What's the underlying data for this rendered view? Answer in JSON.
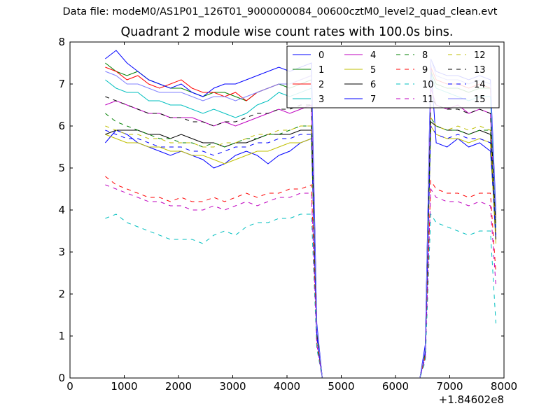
{
  "suptitle": "Data file: modeM0/AS1P01_126T01_9000000084_00600cztM0_level2_quad_clean.evt",
  "chart_data": {
    "type": "line",
    "title": "Quadrant 2 module wise count rates with 100.0s bins.",
    "xlabel": "",
    "ylabel": "",
    "x_offset_label": "+1.84602e8",
    "xlim": [
      0,
      8000
    ],
    "ylim": [
      0,
      8
    ],
    "xticks": [
      "0",
      "1000",
      "2000",
      "3000",
      "4000",
      "5000",
      "6000",
      "7000",
      "8000"
    ],
    "yticks": [
      "0",
      "1",
      "2",
      "3",
      "4",
      "5",
      "6",
      "7",
      "8"
    ],
    "grid": false,
    "legend_position": "top-right",
    "legend_columns": 4,
    "x": [
      650,
      850,
      1050,
      1250,
      1450,
      1650,
      1850,
      2050,
      2250,
      2450,
      2650,
      2850,
      3050,
      3250,
      3450,
      3650,
      3850,
      4050,
      4250,
      4450,
      4550,
      4650,
      4850,
      5050,
      5250,
      5450,
      5650,
      5850,
      6050,
      6250,
      6450,
      6550,
      6650,
      6750,
      6950,
      7150,
      7350,
      7550,
      7750,
      7850
    ],
    "series": [
      {
        "name": "0",
        "color": "#0000ff",
        "dash": "solid",
        "values": [
          5.6,
          5.9,
          5.8,
          5.6,
          5.5,
          5.4,
          5.3,
          5.4,
          5.3,
          5.2,
          5.0,
          5.1,
          5.3,
          5.4,
          5.3,
          5.1,
          5.3,
          5.4,
          5.6,
          5.7,
          1.0,
          0,
          0,
          0,
          0,
          0,
          0,
          0,
          0,
          0,
          0,
          0.6,
          7.5,
          5.6,
          5.5,
          5.7,
          5.5,
          5.6,
          5.4,
          3.5
        ]
      },
      {
        "name": "1",
        "color": "#008000",
        "dash": "solid",
        "values": [
          7.5,
          7.3,
          7.2,
          7.3,
          7.1,
          7.0,
          6.9,
          6.9,
          6.8,
          6.7,
          6.8,
          6.8,
          6.7,
          6.6,
          6.8,
          6.9,
          7.0,
          6.9,
          7.0,
          7.1,
          1.2,
          0,
          0,
          0,
          0,
          0,
          0,
          0,
          0,
          0,
          0,
          0.7,
          7.3,
          7.0,
          6.9,
          6.9,
          6.8,
          6.9,
          6.9,
          3.9
        ]
      },
      {
        "name": "2",
        "color": "#ff0000",
        "dash": "solid",
        "values": [
          7.4,
          7.3,
          7.1,
          7.2,
          7.0,
          6.9,
          7.0,
          7.1,
          6.9,
          6.8,
          6.8,
          6.7,
          6.8,
          6.6,
          6.8,
          6.9,
          7.0,
          7.0,
          7.1,
          7.2,
          1.2,
          0,
          0,
          0,
          0,
          0,
          0,
          0,
          0,
          0,
          0,
          0.7,
          7.4,
          7.1,
          7.0,
          7.0,
          6.9,
          7.0,
          6.9,
          3.8
        ]
      },
      {
        "name": "3",
        "color": "#00bfbf",
        "dash": "solid",
        "values": [
          7.1,
          6.9,
          6.8,
          6.8,
          6.6,
          6.6,
          6.5,
          6.5,
          6.4,
          6.3,
          6.4,
          6.3,
          6.2,
          6.3,
          6.5,
          6.6,
          6.8,
          6.7,
          6.8,
          6.9,
          1.1,
          0,
          0,
          0,
          0,
          0,
          0,
          0,
          0,
          0,
          0,
          0.7,
          7.2,
          6.9,
          6.8,
          6.7,
          6.6,
          6.7,
          6.7,
          3.6
        ]
      },
      {
        "name": "4",
        "color": "#bf00bf",
        "dash": "solid",
        "values": [
          6.5,
          6.6,
          6.5,
          6.4,
          6.3,
          6.3,
          6.2,
          6.2,
          6.2,
          6.1,
          6.0,
          6.1,
          6.0,
          6.1,
          6.2,
          6.3,
          6.4,
          6.3,
          6.4,
          6.5,
          1.1,
          0,
          0,
          0,
          0,
          0,
          0,
          0,
          0,
          0,
          0,
          0.7,
          6.9,
          6.5,
          6.4,
          6.5,
          6.3,
          6.4,
          6.3,
          3.4
        ]
      },
      {
        "name": "5",
        "color": "#bfbf00",
        "dash": "solid",
        "values": [
          5.8,
          5.7,
          5.6,
          5.6,
          5.5,
          5.5,
          5.4,
          5.4,
          5.3,
          5.3,
          5.2,
          5.1,
          5.2,
          5.3,
          5.4,
          5.4,
          5.5,
          5.6,
          5.6,
          5.7,
          1.0,
          0,
          0,
          0,
          0,
          0,
          0,
          0,
          0,
          0,
          0,
          0.6,
          6.0,
          5.8,
          5.7,
          5.7,
          5.6,
          5.7,
          5.6,
          3.2
        ]
      },
      {
        "name": "6",
        "color": "#000000",
        "dash": "solid",
        "values": [
          5.8,
          5.9,
          5.9,
          5.9,
          5.8,
          5.8,
          5.7,
          5.8,
          5.7,
          5.6,
          5.6,
          5.5,
          5.6,
          5.6,
          5.7,
          5.8,
          5.8,
          5.8,
          5.9,
          5.9,
          1.0,
          0,
          0,
          0,
          0,
          0,
          0,
          0,
          0,
          0,
          0,
          0.6,
          6.1,
          6.0,
          5.9,
          5.9,
          5.8,
          5.9,
          5.8,
          3.3
        ]
      },
      {
        "name": "7",
        "color": "#0000ff",
        "dash": "solid",
        "values": [
          7.6,
          7.8,
          7.5,
          7.3,
          7.1,
          7.0,
          6.9,
          7.0,
          6.8,
          6.7,
          6.9,
          7.0,
          7.0,
          7.1,
          7.2,
          7.3,
          7.4,
          7.3,
          7.4,
          7.5,
          1.3,
          0,
          0,
          0,
          0,
          0,
          0,
          0,
          0,
          0,
          0,
          0.8,
          7.6,
          7.3,
          7.2,
          7.2,
          7.1,
          7.2,
          7.1,
          4.0
        ]
      },
      {
        "name": "8",
        "color": "#008000",
        "dash": "dashed",
        "values": [
          6.3,
          6.1,
          6.0,
          5.9,
          5.8,
          5.7,
          5.7,
          5.6,
          5.6,
          5.5,
          5.6,
          5.5,
          5.6,
          5.7,
          5.7,
          5.8,
          5.8,
          5.9,
          6.0,
          6.0,
          1.0,
          0,
          0,
          0,
          0,
          0,
          0,
          0,
          0,
          0,
          0,
          0.6,
          6.2,
          6.0,
          5.9,
          5.9,
          5.8,
          5.9,
          5.9,
          3.4
        ]
      },
      {
        "name": "9",
        "color": "#ff0000",
        "dash": "dashed",
        "values": [
          4.8,
          4.6,
          4.5,
          4.4,
          4.3,
          4.3,
          4.2,
          4.3,
          4.2,
          4.2,
          4.3,
          4.2,
          4.3,
          4.4,
          4.3,
          4.4,
          4.4,
          4.5,
          4.5,
          4.6,
          0.8,
          0,
          0,
          0,
          0,
          0,
          0,
          0,
          0,
          0,
          0,
          0.5,
          4.7,
          4.5,
          4.4,
          4.4,
          4.3,
          4.4,
          4.4,
          2.5
        ]
      },
      {
        "name": "10",
        "color": "#00bfbf",
        "dash": "dashed",
        "values": [
          3.8,
          3.9,
          3.7,
          3.6,
          3.5,
          3.4,
          3.3,
          3.3,
          3.3,
          3.2,
          3.4,
          3.5,
          3.4,
          3.6,
          3.7,
          3.7,
          3.8,
          3.8,
          3.9,
          3.9,
          0.7,
          0,
          0,
          0,
          0,
          0,
          0,
          0,
          0,
          0,
          0,
          0.4,
          3.9,
          3.7,
          3.6,
          3.5,
          3.4,
          3.5,
          3.5,
          1.3
        ]
      },
      {
        "name": "11",
        "color": "#bf00bf",
        "dash": "dashed",
        "values": [
          4.6,
          4.5,
          4.4,
          4.3,
          4.2,
          4.2,
          4.1,
          4.1,
          4.0,
          4.0,
          4.1,
          4.0,
          4.1,
          4.2,
          4.1,
          4.2,
          4.3,
          4.3,
          4.4,
          4.4,
          0.8,
          0,
          0,
          0,
          0,
          0,
          0,
          0,
          0,
          0,
          0,
          0.5,
          4.5,
          4.3,
          4.2,
          4.2,
          4.1,
          4.2,
          4.1,
          2.2
        ]
      },
      {
        "name": "12",
        "color": "#bfbf00",
        "dash": "dashed",
        "values": [
          6.0,
          5.9,
          5.8,
          5.8,
          5.7,
          5.7,
          5.6,
          5.6,
          5.6,
          5.5,
          5.5,
          5.6,
          5.6,
          5.7,
          5.8,
          5.8,
          5.9,
          5.9,
          6.0,
          6.0,
          1.0,
          0,
          0,
          0,
          0,
          0,
          0,
          0,
          0,
          0,
          0,
          0.6,
          6.2,
          6.0,
          5.9,
          6.0,
          5.9,
          6.0,
          5.9,
          3.4
        ]
      },
      {
        "name": "13",
        "color": "#000000",
        "dash": "dashed",
        "values": [
          6.7,
          6.6,
          6.5,
          6.4,
          6.3,
          6.3,
          6.2,
          6.2,
          6.1,
          6.1,
          6.0,
          6.1,
          6.1,
          6.2,
          6.3,
          6.3,
          6.4,
          6.4,
          6.5,
          6.5,
          1.1,
          0,
          0,
          0,
          0,
          0,
          0,
          0,
          0,
          0,
          0,
          0.7,
          6.7,
          6.5,
          6.4,
          6.4,
          6.3,
          6.4,
          6.3,
          3.6
        ]
      },
      {
        "name": "14",
        "color": "#0000ff",
        "dash": "dashed",
        "values": [
          5.9,
          5.8,
          5.7,
          5.7,
          5.6,
          5.5,
          5.5,
          5.5,
          5.4,
          5.4,
          5.3,
          5.4,
          5.5,
          5.5,
          5.6,
          5.6,
          5.7,
          5.7,
          5.8,
          5.8,
          1.0,
          0,
          0,
          0,
          0,
          0,
          0,
          0,
          0,
          0,
          0,
          0.6,
          6.0,
          5.8,
          5.7,
          5.8,
          5.7,
          5.7,
          5.6,
          3.3
        ]
      },
      {
        "name": "15",
        "color": "#8080ff",
        "dash": "solid",
        "values": [
          7.3,
          7.2,
          7.0,
          7.0,
          6.9,
          6.8,
          6.8,
          6.8,
          6.7,
          6.6,
          6.7,
          6.7,
          6.6,
          6.7,
          6.8,
          6.9,
          7.0,
          7.0,
          7.1,
          7.2,
          1.2,
          0,
          0,
          0,
          0,
          0,
          0,
          0,
          0,
          0,
          0,
          0.7,
          7.6,
          7.2,
          7.1,
          7.1,
          7.0,
          7.1,
          7.0,
          3.9
        ]
      }
    ]
  }
}
